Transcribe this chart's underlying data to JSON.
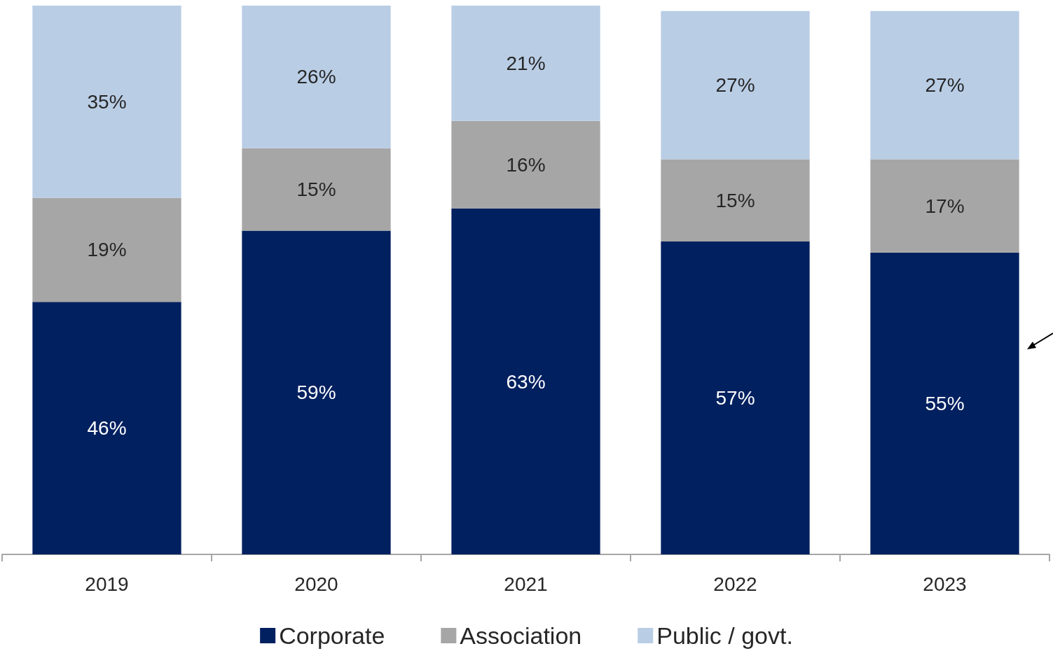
{
  "chart_data": {
    "type": "bar",
    "stacked": true,
    "categories": [
      "2019",
      "2020",
      "2021",
      "2022",
      "2023"
    ],
    "series": [
      {
        "name": "Corporate",
        "color": "#002060",
        "values": [
          46,
          59,
          63,
          57,
          55
        ],
        "value_labels": [
          "46%",
          "59%",
          "63%",
          "57%",
          "55%"
        ]
      },
      {
        "name": "Association",
        "color": "#a6a6a6",
        "values": [
          19,
          15,
          16,
          15,
          17
        ],
        "value_labels": [
          "19%",
          "15%",
          "16%",
          "15%",
          "17%"
        ]
      },
      {
        "name": "Public / govt.",
        "color": "#b9cde5",
        "values": [
          35,
          26,
          21,
          27,
          27
        ],
        "value_labels": [
          "35%",
          "26%",
          "21%",
          "27%",
          "27%"
        ]
      }
    ],
    "ylim": [
      0,
      100
    ],
    "tick_labels": "x",
    "legend": "bottom"
  }
}
